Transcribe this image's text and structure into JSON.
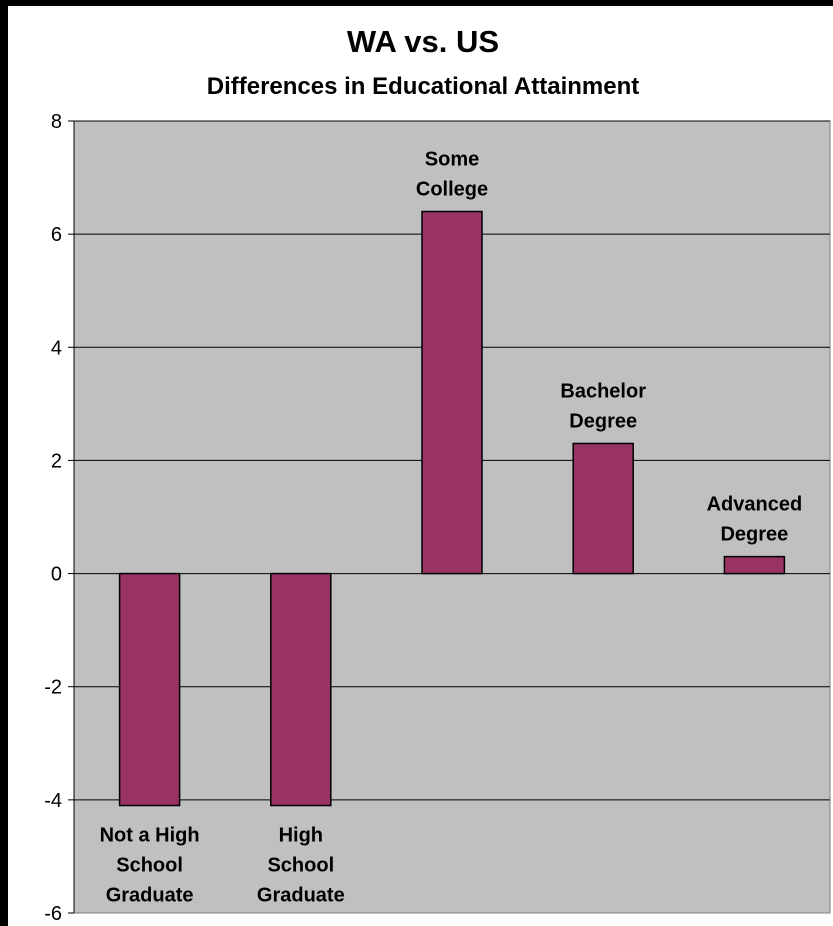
{
  "chart_data": {
    "type": "bar",
    "title": "WA vs. US",
    "subtitle": "Differences in Educational Attainment",
    "xlabel": "",
    "ylabel": "",
    "ylim": [
      -6,
      8
    ],
    "yticks": [
      8,
      6,
      4,
      2,
      0,
      -2,
      -4,
      -6
    ],
    "grid": true,
    "legend": "none",
    "categories": [
      [
        "Not a High",
        "School",
        "Graduate"
      ],
      [
        "High",
        "School",
        "Graduate"
      ],
      [
        "Some",
        "College"
      ],
      [
        "Bachelor",
        "Degree"
      ],
      [
        "Advanced",
        "Degree"
      ]
    ],
    "values": [
      -4.1,
      -4.1,
      6.4,
      2.3,
      0.3
    ],
    "colors": {
      "bar": "#993366",
      "plot_background": "#c0c0c0",
      "page_background": "#ffffff",
      "frame": "#000000",
      "gridline": "#000000"
    }
  }
}
